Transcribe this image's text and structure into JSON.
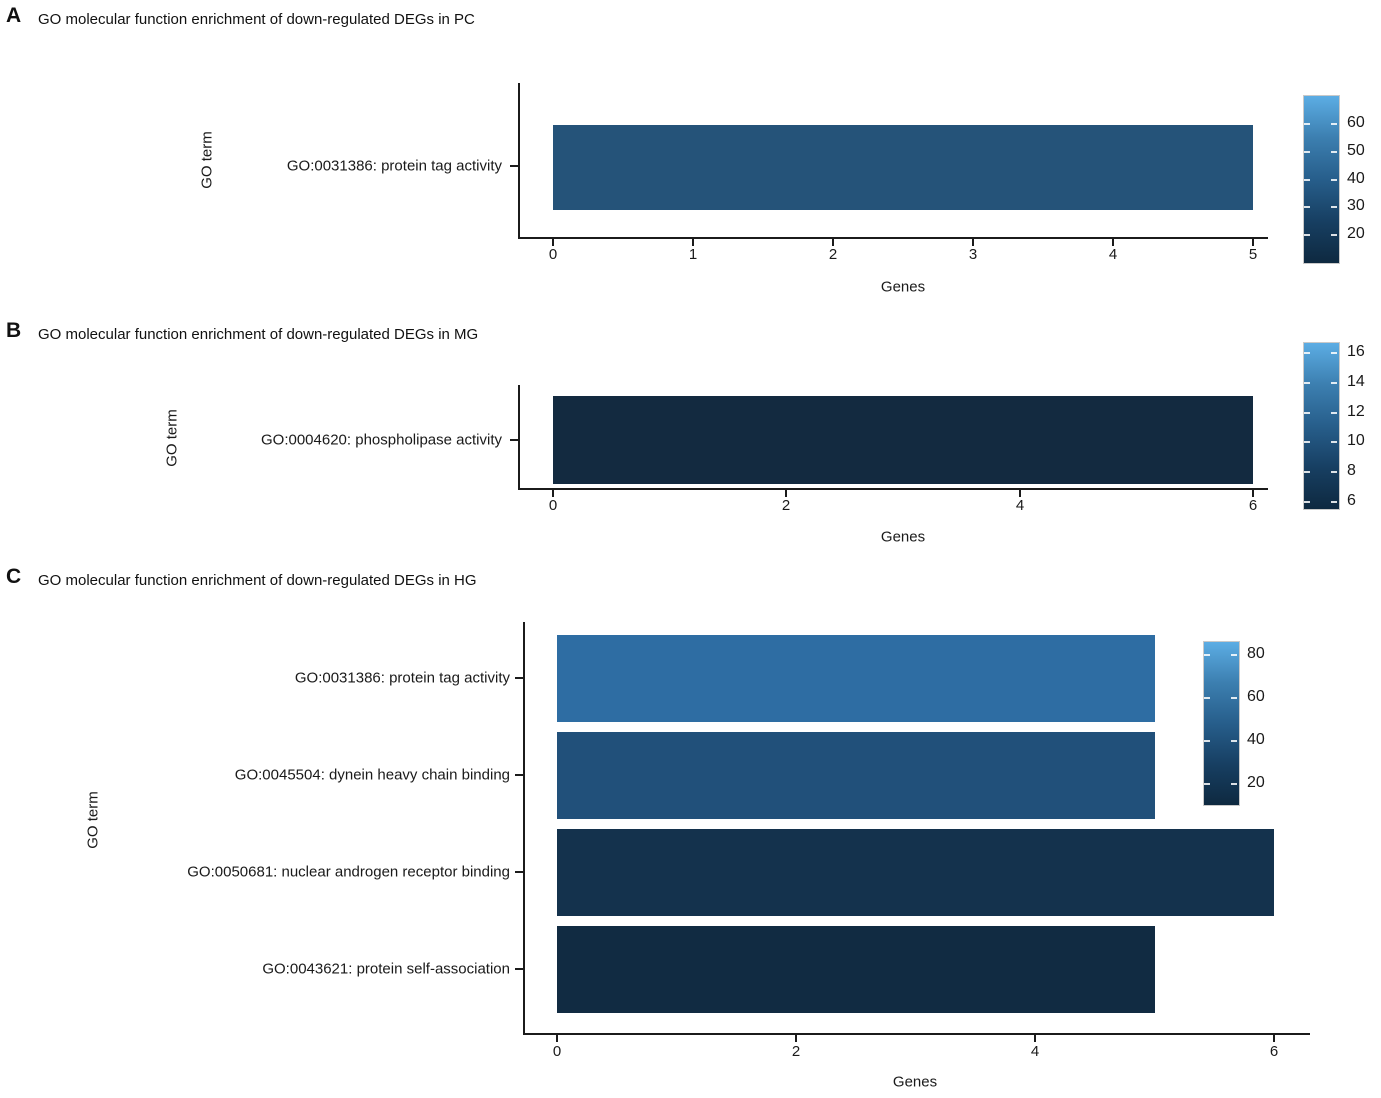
{
  "chart_data": [
    {
      "type": "bar",
      "orientation": "horizontal",
      "panel_letter": "A",
      "title": "GO molecular function enrichment of down-regulated DEGs in PC",
      "xlabel": "Genes",
      "ylabel": "GO term",
      "categories": [
        "GO:0031386: protein tag activity"
      ],
      "values": [
        5
      ],
      "bar_colors": [
        "#255379"
      ],
      "x_ticks": [
        0,
        1,
        2,
        3,
        4,
        5
      ],
      "xlim": [
        0,
        5
      ],
      "legend_position": "right",
      "grid": false,
      "colorbar": {
        "tick_labels": [
          20,
          30,
          40,
          50,
          60
        ],
        "range": [
          10,
          70
        ],
        "gradient_bottom_to_top": [
          "#0e2940",
          "#173f62",
          "#275e8b",
          "#3c7fb0",
          "#5cade4"
        ]
      }
    },
    {
      "type": "bar",
      "orientation": "horizontal",
      "panel_letter": "B",
      "title": "GO molecular function enrichment of down-regulated DEGs in MG",
      "xlabel": "Genes",
      "ylabel": "GO term",
      "categories": [
        "GO:0004620: phospholipase activity"
      ],
      "values": [
        6
      ],
      "bar_colors": [
        "#132a40"
      ],
      "x_ticks": [
        0,
        2,
        4,
        6
      ],
      "xlim": [
        0,
        6
      ],
      "legend_position": "right",
      "grid": false,
      "colorbar": {
        "tick_labels": [
          6,
          8,
          10,
          12,
          14,
          16
        ],
        "range": [
          5.5,
          16.7
        ],
        "gradient_bottom_to_top": [
          "#0e2940",
          "#173f62",
          "#275e8b",
          "#3c7fb0",
          "#5cade4"
        ]
      }
    },
    {
      "type": "bar",
      "orientation": "horizontal",
      "panel_letter": "C",
      "title": "GO molecular function enrichment of down-regulated DEGs in HG",
      "xlabel": "Genes",
      "ylabel": "GO term",
      "categories": [
        "GO:0031386: protein tag activity",
        "GO:0045504: dynein heavy chain binding",
        "GO:0050681: nuclear androgen receptor binding",
        "GO:0043621: protein self-association"
      ],
      "values": [
        5,
        5,
        6,
        5
      ],
      "bar_colors": [
        "#2e6da3",
        "#21507a",
        "#14324d",
        "#112b42"
      ],
      "x_ticks": [
        0,
        2,
        4,
        6
      ],
      "xlim": [
        0,
        6
      ],
      "legend_position": "top-right-inside",
      "grid": false,
      "colorbar": {
        "tick_labels": [
          20,
          40,
          60,
          80
        ],
        "range": [
          10,
          86
        ],
        "gradient_bottom_to_top": [
          "#0e2940",
          "#173f62",
          "#275e8b",
          "#3c7fb0",
          "#5cade4"
        ]
      }
    }
  ]
}
